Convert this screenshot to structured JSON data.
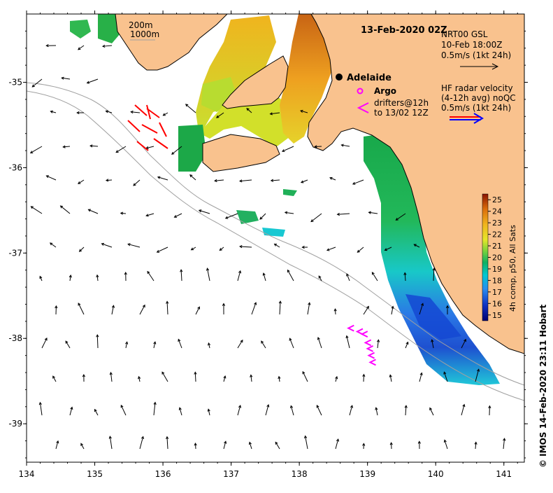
{
  "title": "13-Feb-2020 02Z",
  "city": "Adelaide",
  "bathymetry_legend": [
    "200m",
    "1000m"
  ],
  "legend": {
    "model_lines": [
      "NRT00 GSL",
      "10-Feb 18:00Z",
      "0.5m/s (1kt 24h)"
    ],
    "hf_lines": [
      "HF radar velocity",
      "(4-12h avg) noQC",
      "0.5m/s (1kt 24h)"
    ],
    "argo": "Argo",
    "drifters_lines": [
      "drifters@12h",
      "to 13/02 12Z"
    ]
  },
  "colorbar": {
    "ticks": [
      15,
      16,
      17,
      18,
      19,
      20,
      21,
      22,
      23,
      24,
      25
    ],
    "label": "4h comp, p50, All Sats",
    "range": [
      14.5,
      25.5
    ]
  },
  "credit": "© IMOS 14-Feb-2020 23:11 Hobart",
  "axes": {
    "x_ticks": [
      134,
      135,
      136,
      137,
      138,
      139,
      140,
      141
    ],
    "y_ticks": [
      -35,
      -36,
      -37,
      -38,
      -39
    ],
    "x_range": [
      134,
      141.3
    ],
    "y_range": [
      -39.45,
      -34.2
    ]
  },
  "colors": {
    "land": "#f9c28e",
    "sst_warm": "#d26a00",
    "sst_cool": "#1030c0",
    "drifter": "#ff00ff",
    "hf_radar": "#ff0000"
  },
  "chart_data": {
    "type": "heatmap",
    "title": "13-Feb-2020 02Z",
    "xlim": [
      134,
      141.3
    ],
    "ylim": [
      -39.45,
      -34.2
    ],
    "colorbar_range": [
      14.5,
      25.5
    ],
    "argo_floats": [
      [
        138.85,
        -35.1
      ]
    ],
    "drifter_tracks": [
      [
        [
          138.75,
          -37.88
        ],
        [
          138.88,
          -37.92
        ]
      ],
      [
        [
          138.95,
          -37.95
        ],
        [
          139.0,
          -38.05
        ],
        [
          139.03,
          -38.12
        ],
        [
          139.05,
          -38.2
        ],
        [
          139.07,
          -38.28
        ]
      ]
    ]
  }
}
